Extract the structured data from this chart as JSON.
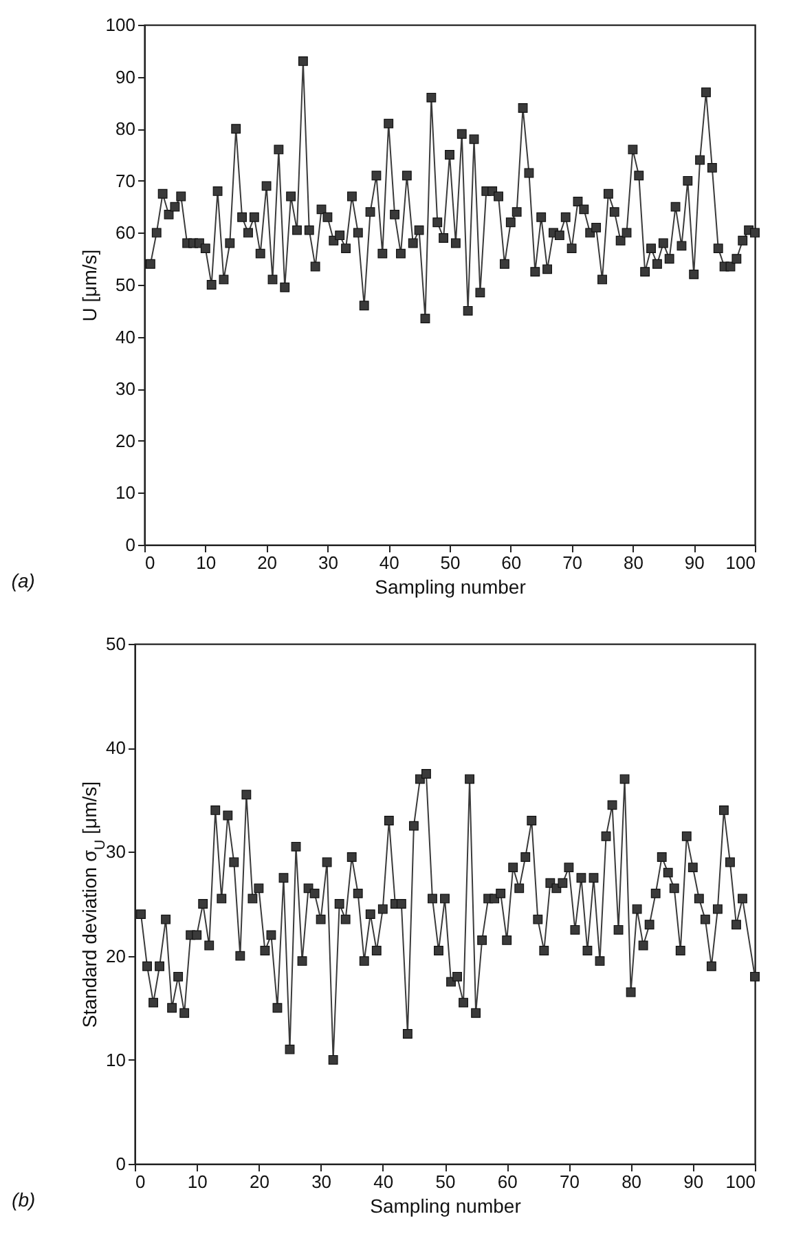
{
  "chart_data": [
    {
      "type": "line",
      "xlabel": "Sampling number",
      "ylabel": "U [μm/s]",
      "annotations": [
        "(a)"
      ],
      "marker": "square",
      "line_style": "solid",
      "grid": false,
      "xlim": [
        0,
        100
      ],
      "xticks": [
        0,
        10,
        20,
        30,
        40,
        50,
        60,
        70,
        80,
        90,
        100
      ],
      "ylim": [
        0,
        100
      ],
      "yticks": [
        0,
        10,
        20,
        30,
        40,
        50,
        60,
        70,
        80,
        90,
        100
      ],
      "x": [
        1,
        2,
        3,
        4,
        5,
        6,
        7,
        8,
        9,
        10,
        11,
        12,
        13,
        14,
        15,
        16,
        17,
        18,
        19,
        20,
        21,
        22,
        23,
        24,
        25,
        26,
        27,
        28,
        29,
        30,
        31,
        32,
        33,
        34,
        35,
        36,
        37,
        38,
        39,
        40,
        41,
        42,
        43,
        44,
        45,
        46,
        47,
        48,
        49,
        50,
        51,
        52,
        53,
        54,
        55,
        56,
        57,
        58,
        59,
        60,
        61,
        62,
        63,
        64,
        65,
        66,
        67,
        68,
        69,
        70,
        71,
        72,
        73,
        74,
        75,
        76,
        77,
        78,
        79,
        80,
        81,
        82,
        83,
        84,
        85,
        86,
        87,
        88,
        89,
        90,
        91,
        92,
        93,
        94,
        95,
        96,
        97,
        98,
        99,
        100
      ],
      "series": [
        {
          "color": "#3a3a3a",
          "values": [
            54,
            60,
            67.5,
            63.5,
            65,
            67,
            58,
            58,
            58,
            57,
            50,
            68,
            51,
            58,
            80,
            63,
            60,
            63,
            56,
            69,
            51,
            76,
            49.5,
            67,
            60.5,
            93,
            60.5,
            53.5,
            64.5,
            63,
            58.5,
            59.5,
            57,
            67,
            60,
            46,
            64,
            71,
            56,
            81,
            63.5,
            56,
            71,
            58,
            60.5,
            43.5,
            86,
            62,
            59,
            75,
            58,
            79,
            45,
            78,
            48.5,
            68,
            68,
            67,
            54,
            62,
            64,
            84,
            71.5,
            52.5,
            63,
            53,
            60,
            59.5,
            63,
            57,
            66,
            64.5,
            60,
            61,
            51,
            67.5,
            64,
            58.5,
            60,
            76,
            71,
            52.5,
            57,
            54,
            58,
            55,
            65,
            57.5,
            70,
            52,
            74,
            87,
            72.5,
            57,
            53.5,
            53.5,
            55,
            58.5,
            60.5,
            60
          ]
        }
      ]
    },
    {
      "type": "line",
      "xlabel": "Sampling number",
      "ylabel": "Standard deviation σ$_{U}$ [μm/s]",
      "annotations": [
        "(b)"
      ],
      "marker": "square",
      "line_style": "solid",
      "grid": false,
      "xlim": [
        0,
        100
      ],
      "xticks": [
        0,
        10,
        20,
        30,
        40,
        50,
        60,
        70,
        80,
        90,
        100
      ],
      "ylim": [
        0,
        50
      ],
      "yticks": [
        0,
        10,
        20,
        30,
        40,
        50
      ],
      "x": [
        1,
        2,
        3,
        4,
        5,
        6,
        7,
        8,
        9,
        10,
        11,
        12,
        13,
        14,
        15,
        16,
        17,
        18,
        19,
        20,
        21,
        22,
        23,
        24,
        25,
        26,
        27,
        28,
        29,
        30,
        31,
        32,
        33,
        34,
        35,
        36,
        37,
        38,
        39,
        40,
        41,
        42,
        43,
        44,
        45,
        46,
        47,
        48,
        49,
        50,
        51,
        52,
        53,
        54,
        55,
        56,
        57,
        58,
        59,
        60,
        61,
        62,
        63,
        64,
        65,
        66,
        67,
        68,
        69,
        70,
        71,
        72,
        73,
        74,
        75,
        76,
        77,
        78,
        79,
        80,
        81,
        82,
        83,
        84,
        85,
        86,
        87,
        88,
        89,
        90,
        91,
        92,
        93,
        94,
        95,
        96,
        97,
        98,
        100
      ],
      "series": [
        {
          "color": "#3a3a3a",
          "values": [
            24,
            19,
            15.5,
            19,
            23.5,
            15,
            18,
            14.5,
            22,
            22,
            25,
            21,
            34,
            25.5,
            33.5,
            29,
            20,
            35.5,
            25.5,
            26.5,
            20.5,
            22,
            15,
            27.5,
            11,
            30.5,
            19.5,
            26.5,
            26,
            23.5,
            29,
            10,
            25,
            23.5,
            29.5,
            26,
            19.5,
            24,
            20.5,
            24.5,
            33,
            25,
            25,
            12.5,
            32.5,
            37,
            37.5,
            25.5,
            20.5,
            25.5,
            17.5,
            18,
            15.5,
            37,
            14.5,
            21.5,
            25.5,
            25.5,
            26,
            21.5,
            28.5,
            26.5,
            29.5,
            33,
            23.5,
            20.5,
            27,
            26.5,
            27,
            28.5,
            22.5,
            27.5,
            20.5,
            27.5,
            19.5,
            31.5,
            34.5,
            22.5,
            37,
            16.5,
            24.5,
            21,
            23,
            26,
            29.5,
            28,
            26.5,
            20.5,
            31.5,
            28.5,
            25.5,
            23.5,
            19,
            24.5,
            34,
            29,
            23,
            25.5,
            18
          ]
        }
      ]
    }
  ]
}
